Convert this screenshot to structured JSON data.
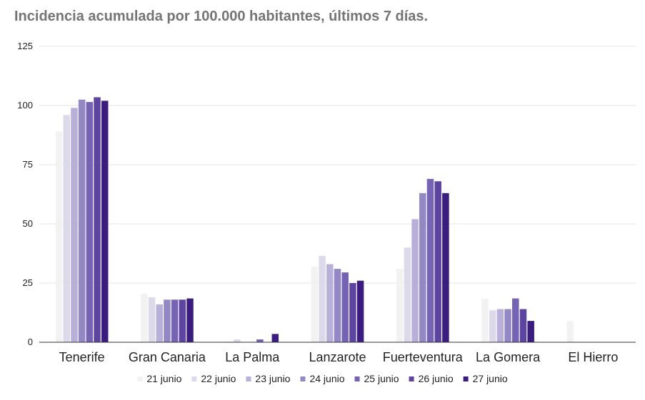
{
  "chart_data": {
    "type": "bar",
    "title": "Incidencia acumulada por 100.000 habitantes, últimos 7 días.",
    "xlabel": "",
    "ylabel": "",
    "ylim": [
      0,
      125
    ],
    "yticks": [
      0,
      25,
      50,
      75,
      100,
      125
    ],
    "grid": true,
    "legend_position": "bottom",
    "categories": [
      "Tenerife",
      "Gran Canaria",
      "La Palma",
      "Lanzarote",
      "Fuerteventura",
      "La Gomera",
      "El Hierro"
    ],
    "series": [
      {
        "name": "21 junio",
        "color": "#f2f2f2",
        "values": [
          89,
          20.5,
          0.3,
          32,
          31,
          18.5,
          9
        ]
      },
      {
        "name": "22 junio",
        "color": "#dcd9eb",
        "values": [
          96,
          19,
          1.2,
          36.5,
          40,
          13.5,
          0
        ]
      },
      {
        "name": "23 junio",
        "color": "#b8b0d8",
        "values": [
          99,
          16,
          0,
          33,
          52,
          14,
          0
        ]
      },
      {
        "name": "24 junio",
        "color": "#9387c4",
        "values": [
          102.5,
          18,
          0,
          31,
          63,
          14,
          0
        ]
      },
      {
        "name": "25 junio",
        "color": "#7663b4",
        "values": [
          101.5,
          18,
          1.2,
          29.5,
          69,
          18.5,
          0
        ]
      },
      {
        "name": "26 junio",
        "color": "#5c44a0",
        "values": [
          103.5,
          18,
          0,
          25,
          68,
          14,
          0
        ]
      },
      {
        "name": "27 junio",
        "color": "#3a1d7e",
        "values": [
          102,
          18.5,
          3.5,
          26,
          63,
          9,
          0
        ]
      }
    ]
  }
}
